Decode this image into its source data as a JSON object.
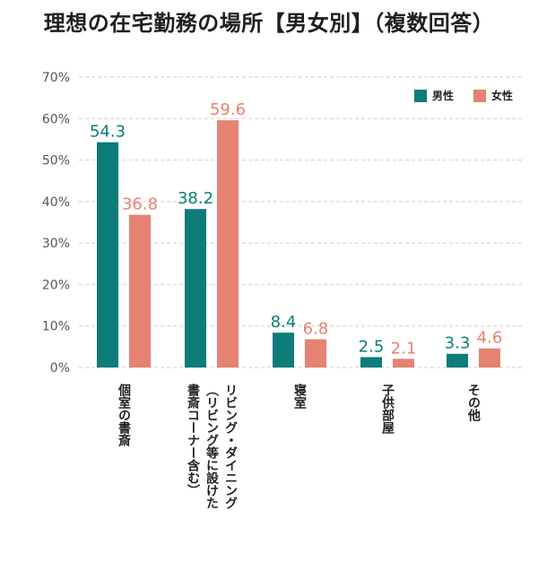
{
  "chart_data": {
    "type": "bar",
    "title": "理想の在宅勤務の場所【男女別】（複数回答）",
    "ylim": [
      0,
      70
    ],
    "yticks": [
      0,
      10,
      20,
      30,
      40,
      50,
      60,
      70
    ],
    "ytick_suffix": "%",
    "grid": true,
    "legend_position": "top-right",
    "categories": [
      [
        "個室の書斎"
      ],
      [
        "リビング・ダイニング",
        "（リビング等に設けた",
        "書斎コーナー含む）"
      ],
      [
        "寝室"
      ],
      [
        "子供部屋"
      ],
      [
        "その他"
      ]
    ],
    "series": [
      {
        "name": "男性",
        "color": "#0e7c78",
        "values": [
          54.3,
          38.2,
          8.4,
          2.5,
          3.3
        ]
      },
      {
        "name": "女性",
        "color": "#e58272",
        "values": [
          36.8,
          59.6,
          6.8,
          2.1,
          4.6
        ]
      }
    ]
  }
}
